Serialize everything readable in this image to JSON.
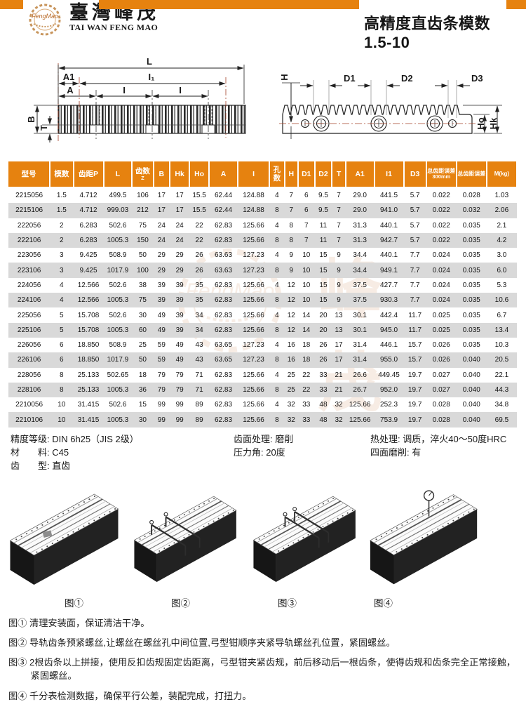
{
  "header": {
    "brand_cn": "臺灣峰茂",
    "brand_en": "TAI WAN FENG MAO",
    "title": "高精度直齿条模数1.5-10",
    "logo_script": "FengMao"
  },
  "diagram_labels": {
    "L": "L",
    "A1": "A1",
    "I1": "I₁",
    "A": "A",
    "I_left": "I",
    "I_right": "I",
    "B": "B",
    "T": "T",
    "H": "H",
    "D1": "D1",
    "D2": "D2",
    "D3": "D3",
    "Ho": "Ho",
    "Hk": "Hk"
  },
  "table": {
    "columns": [
      {
        "label": "型号"
      },
      {
        "label": "模数"
      },
      {
        "label": "齿距P"
      },
      {
        "label": "L"
      },
      {
        "label": "齿数",
        "sub": "Z"
      },
      {
        "label": "B"
      },
      {
        "label": "Hk"
      },
      {
        "label": "Ho"
      },
      {
        "label": "A"
      },
      {
        "label": "I"
      },
      {
        "label": "孔数"
      },
      {
        "label": "H"
      },
      {
        "label": "D1"
      },
      {
        "label": "D2"
      },
      {
        "label": "T"
      },
      {
        "label": "A1"
      },
      {
        "label": "I1"
      },
      {
        "label": "D3"
      },
      {
        "label": "总齿距误差",
        "sub": "300mm"
      },
      {
        "label": "总齿距误差"
      },
      {
        "label": "M(kg)"
      }
    ],
    "rows": [
      [
        "2215056",
        "1.5",
        "4.712",
        "499.5",
        "106",
        "17",
        "17",
        "15.5",
        "62.44",
        "124.88",
        "4",
        "7",
        "6",
        "9.5",
        "7",
        "29.0",
        "441.5",
        "5.7",
        "0.022",
        "0.028",
        "1.03"
      ],
      [
        "2215106",
        "1.5",
        "4.712",
        "999.03",
        "212",
        "17",
        "17",
        "15.5",
        "62.44",
        "124.88",
        "8",
        "7",
        "6",
        "9.5",
        "7",
        "29.0",
        "941.0",
        "5.7",
        "0.022",
        "0.032",
        "2.06"
      ],
      [
        "222056",
        "2",
        "6.283",
        "502.6",
        "75",
        "24",
        "24",
        "22",
        "62.83",
        "125.66",
        "4",
        "8",
        "7",
        "11",
        "7",
        "31.3",
        "440.1",
        "5.7",
        "0.022",
        "0.035",
        "2.1"
      ],
      [
        "222106",
        "2",
        "6.283",
        "1005.3",
        "150",
        "24",
        "24",
        "22",
        "62.83",
        "125.66",
        "8",
        "8",
        "7",
        "11",
        "7",
        "31.3",
        "942.7",
        "5.7",
        "0.022",
        "0.035",
        "4.2"
      ],
      [
        "223056",
        "3",
        "9.425",
        "508.9",
        "50",
        "29",
        "29",
        "26",
        "63.63",
        "127.23",
        "4",
        "9",
        "10",
        "15",
        "9",
        "34.4",
        "440.1",
        "7.7",
        "0.024",
        "0.035",
        "3.0"
      ],
      [
        "223106",
        "3",
        "9.425",
        "1017.9",
        "100",
        "29",
        "29",
        "26",
        "63.63",
        "127.23",
        "8",
        "9",
        "10",
        "15",
        "9",
        "34.4",
        "949.1",
        "7.7",
        "0.024",
        "0.035",
        "6.0"
      ],
      [
        "224056",
        "4",
        "12.566",
        "502.6",
        "38",
        "39",
        "39",
        "35",
        "62.83",
        "125.66",
        "4",
        "12",
        "10",
        "15",
        "9",
        "37.5",
        "427.7",
        "7.7",
        "0.024",
        "0.035",
        "5.3"
      ],
      [
        "224106",
        "4",
        "12.566",
        "1005.3",
        "75",
        "39",
        "39",
        "35",
        "62.83",
        "125.66",
        "8",
        "12",
        "10",
        "15",
        "9",
        "37.5",
        "930.3",
        "7.7",
        "0.024",
        "0.035",
        "10.6"
      ],
      [
        "225056",
        "5",
        "15.708",
        "502.6",
        "30",
        "49",
        "39",
        "34",
        "62.83",
        "125.66",
        "4",
        "12",
        "14",
        "20",
        "13",
        "30.1",
        "442.4",
        "11.7",
        "0.025",
        "0.035",
        "6.7"
      ],
      [
        "225106",
        "5",
        "15.708",
        "1005.3",
        "60",
        "49",
        "39",
        "34",
        "62.83",
        "125.66",
        "8",
        "12",
        "14",
        "20",
        "13",
        "30.1",
        "945.0",
        "11.7",
        "0.025",
        "0.035",
        "13.4"
      ],
      [
        "226056",
        "6",
        "18.850",
        "508.9",
        "25",
        "59",
        "49",
        "43",
        "63.65",
        "127.23",
        "4",
        "16",
        "18",
        "26",
        "17",
        "31.4",
        "446.1",
        "15.7",
        "0.026",
        "0.035",
        "10.3"
      ],
      [
        "226106",
        "6",
        "18.850",
        "1017.9",
        "50",
        "59",
        "49",
        "43",
        "63.65",
        "127.23",
        "8",
        "16",
        "18",
        "26",
        "17",
        "31.4",
        "955.0",
        "15.7",
        "0.026",
        "0.040",
        "20.5"
      ],
      [
        "228056",
        "8",
        "25.133",
        "502.65",
        "18",
        "79",
        "79",
        "71",
        "62.83",
        "125.66",
        "4",
        "25",
        "22",
        "33",
        "21",
        "26.6",
        "449.45",
        "19.7",
        "0.027",
        "0.040",
        "22.1"
      ],
      [
        "228106",
        "8",
        "25.133",
        "1005.3",
        "36",
        "79",
        "79",
        "71",
        "62.83",
        "125.66",
        "8",
        "25",
        "22",
        "33",
        "21",
        "26.7",
        "952.0",
        "19.7",
        "0.027",
        "0.040",
        "44.3"
      ],
      [
        "2210056",
        "10",
        "31.415",
        "502.6",
        "15",
        "99",
        "99",
        "89",
        "62.83",
        "125.66",
        "4",
        "32",
        "33",
        "48",
        "32",
        "125.66",
        "252.3",
        "19.7",
        "0.028",
        "0.040",
        "34.8"
      ],
      [
        "2210106",
        "10",
        "31.415",
        "1005.3",
        "30",
        "99",
        "99",
        "89",
        "62.83",
        "125.66",
        "8",
        "32",
        "33",
        "48",
        "32",
        "125.66",
        "753.9",
        "19.7",
        "0.028",
        "0.040",
        "69.5"
      ]
    ]
  },
  "specs": {
    "col1": [
      "精度等级: DIN 6h25（JIS 2级）",
      "材　　料: C45",
      "齿　　型: 直齿"
    ],
    "col2": [
      "齿面处理: 磨削",
      "压力角: 20度"
    ],
    "col3": [
      "热处理: 调质，淬火40〜50度HRC",
      "四面磨削: 有"
    ]
  },
  "figures": [
    "图①",
    "图②",
    "图③",
    "图④"
  ],
  "notes": [
    "图① 清理安装面，保证清洁干净。",
    "图② 导轨齿条预紧螺丝,让螺丝在螺丝孔中间位置,弓型钳顺序夹紧导轨螺丝孔位置，紧固螺丝。",
    "图③ 2根齿条以上拼接，使用反扣齿规固定齿距离，弓型钳夹紧齿规，前后移动后一根齿条，使得齿规和齿条完全正常接触，紧固螺丝。",
    "图④ 千分表检测数据，确保平行公差，装配完成，打扭力。"
  ],
  "watermark": {
    "cn": "峰 茂",
    "en": "FengMao",
    "en2": "FENG MAO"
  },
  "colors": {
    "accent": "#E6820F",
    "row_alt": "#D9D9D9"
  }
}
